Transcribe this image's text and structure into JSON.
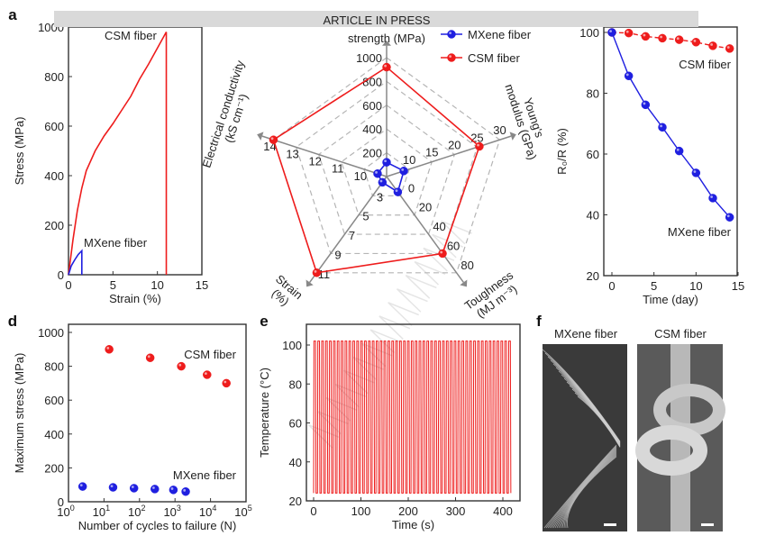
{
  "banner": {
    "text": "ARTICLE IN PRESS",
    "color": "#d9d9d9"
  },
  "watermark": {
    "text": "ARTICLE IN PRESS"
  },
  "panel_labels": {
    "a": "a",
    "d": "d",
    "e": "e",
    "f": "f"
  },
  "colors": {
    "mxene": "#1f1fe0",
    "csm": "#ee1c1c",
    "grid": "#9a9a9a"
  },
  "chart_data": [
    {
      "id": "stress_strain",
      "type": "line",
      "xlabel": "Strain (%)",
      "ylabel": "Stress (MPa)",
      "xlim": [
        0,
        15
      ],
      "ylim": [
        0,
        1000
      ],
      "xticks": [
        0,
        5,
        10,
        15
      ],
      "yticks": [
        0,
        200,
        400,
        600,
        800,
        1000
      ],
      "series": [
        {
          "name": "CSM fiber",
          "x": [
            0,
            0.5,
            1,
            1.5,
            2,
            3,
            4,
            5,
            6,
            7,
            8,
            9,
            10,
            11,
            11
          ],
          "y": [
            0,
            140,
            260,
            350,
            420,
            500,
            560,
            610,
            665,
            720,
            790,
            850,
            915,
            980,
            0
          ]
        },
        {
          "name": "MXene fiber",
          "x": [
            0,
            0.3,
            0.7,
            1.1,
            1.5,
            1.5
          ],
          "y": [
            0,
            35,
            60,
            82,
            97,
            0
          ]
        }
      ],
      "grid": false
    },
    {
      "id": "radar",
      "type": "radar",
      "legend": [
        "MXene fiber",
        "CSM fiber"
      ],
      "legend_placement": "top-right",
      "axes": [
        {
          "title": [
            "strength (MPa)"
          ],
          "min": 0,
          "max": 1000,
          "ticks": [
            200,
            400,
            600,
            800,
            1000
          ]
        },
        {
          "title": [
            "Young's",
            "modulus (GPa)"
          ],
          "min": 5,
          "max": 30,
          "ticks": [
            10,
            15,
            20,
            25,
            30
          ]
        },
        {
          "title": [
            "Toughness",
            "(MJ m⁻³)"
          ],
          "min": -20,
          "max": 80,
          "ticks": [
            0,
            20,
            40,
            60,
            80
          ]
        },
        {
          "title": [
            "Strain",
            "(%)"
          ],
          "min": 1,
          "max": 11,
          "ticks": [
            3,
            5,
            7,
            9,
            11
          ]
        },
        {
          "title": [
            "Electrical conductivity",
            "(kS cm⁻¹)"
          ],
          "min": 9,
          "max": 14,
          "ticks": [
            10,
            11,
            12,
            13,
            14
          ]
        }
      ],
      "series": [
        {
          "name": "MXene fiber",
          "values": [
            120,
            8.8,
            -4,
            1.6,
            9.4
          ]
        },
        {
          "name": "CSM fiber",
          "values": [
            920,
            25.5,
            60,
            11,
            14
          ]
        }
      ]
    },
    {
      "id": "resistance_stability",
      "type": "line",
      "xlabel": "Time (day)",
      "ylabel": "R₀/R (%)",
      "xlim": [
        -1,
        15
      ],
      "ylim": [
        20,
        100
      ],
      "xticks": [
        0,
        5,
        10,
        15
      ],
      "yticks": [
        20,
        40,
        60,
        80,
        100
      ],
      "series": [
        {
          "name": "CSM fiber",
          "x": [
            0,
            2,
            4,
            6,
            8,
            10,
            12,
            14
          ],
          "y": [
            100,
            99.8,
            98.7,
            98.1,
            97.6,
            96.8,
            95.6,
            94.7
          ],
          "style": "dashed"
        },
        {
          "name": "MXene fiber",
          "x": [
            0,
            2,
            4,
            6,
            8,
            10,
            12,
            14
          ],
          "y": [
            100,
            85.7,
            76.2,
            68.8,
            61,
            53.8,
            45.5,
            39.2
          ],
          "style": "solid"
        }
      ]
    },
    {
      "id": "fatigue",
      "type": "scatter",
      "xlabel": "Number of cycles to failure (N)",
      "ylabel": "Maximum stress (MPa)",
      "xscale": "log",
      "xlim": [
        1,
        100000
      ],
      "ylim": [
        0,
        1000
      ],
      "xticks": [
        {
          "base": "10",
          "exp": "0"
        },
        {
          "base": "10",
          "exp": "1"
        },
        {
          "base": "10",
          "exp": "2"
        },
        {
          "base": "10",
          "exp": "3"
        },
        {
          "base": "10",
          "exp": "4"
        },
        {
          "base": "10",
          "exp": "5"
        }
      ],
      "yticks": [
        0,
        200,
        400,
        600,
        800,
        1000
      ],
      "series": [
        {
          "name": "CSM fiber",
          "x": [
            14,
            200,
            1500,
            8000,
            28000
          ],
          "y": [
            900,
            850,
            800,
            750,
            700
          ]
        },
        {
          "name": "MXene fiber",
          "x": [
            2.5,
            18,
            70,
            270,
            900,
            2000
          ],
          "y": [
            90,
            85,
            80,
            75,
            70,
            60
          ]
        }
      ]
    },
    {
      "id": "heating_cycles",
      "type": "line",
      "xlabel": "Time (s)",
      "ylabel": "Temperature (°C)",
      "xlim": [
        -10,
        430
      ],
      "ylim": [
        20,
        110
      ],
      "xticks": [
        0,
        100,
        200,
        300,
        400
      ],
      "yticks": [
        20,
        40,
        60,
        80,
        100
      ],
      "signal": {
        "cycles": 51,
        "t_start": 0,
        "t_end": 420,
        "min": 24,
        "max": 102
      }
    }
  ],
  "sem_images": {
    "mxene_title": "MXene fiber",
    "csm_title": "CSM fiber"
  }
}
